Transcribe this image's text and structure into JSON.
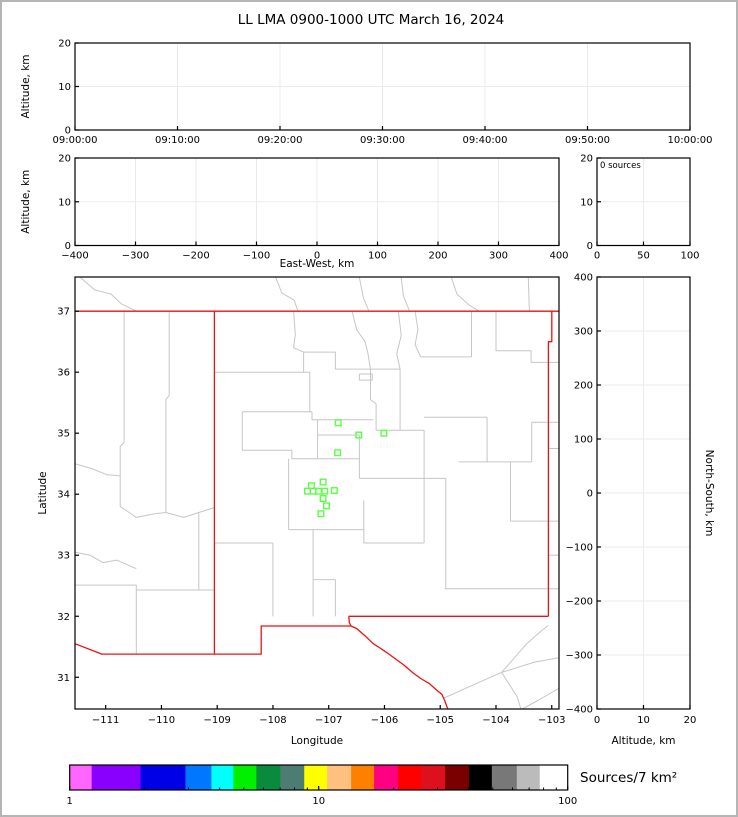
{
  "title": "LL LMA 0900-1000 UTC March 16, 2024",
  "colors": {
    "state_border": "#ee1111",
    "county_line": "#c6c6c6",
    "source_marker": "#5aff46",
    "grid": "#ebebeb",
    "frame": "#000000",
    "text": "#000000"
  },
  "panels": {
    "time_altitude": {
      "ylabel": "Altitude, km",
      "yticks": [
        0,
        10,
        20
      ],
      "xtick_labels": [
        "09:00:00",
        "09:10:00",
        "09:20:00",
        "09:30:00",
        "09:40:00",
        "09:50:00",
        "10:00:00"
      ]
    },
    "ew_altitude": {
      "ylabel": "Altitude, km",
      "xlabel": "East-West, km",
      "yticks": [
        0,
        10,
        20
      ],
      "xticks": [
        -400,
        -300,
        -200,
        -100,
        0,
        100,
        200,
        300,
        400
      ]
    },
    "altitude_histogram": {
      "annotation": "0 sources",
      "xticks": [
        0,
        50,
        100
      ],
      "yticks": [
        0,
        10,
        20
      ]
    },
    "map": {
      "xlabel": "Longitude",
      "ylabel": "Latitude",
      "xticks": [
        -111,
        -110,
        -109,
        -108,
        -107,
        -106,
        -105,
        -104,
        -103
      ],
      "yticks": [
        31,
        32,
        33,
        34,
        35,
        36,
        37
      ]
    },
    "ns_altitude": {
      "xlabel": "Altitude, km",
      "ylabel": "North-South, km",
      "xticks": [
        0,
        10,
        20
      ],
      "yticks": [
        -400,
        -300,
        -200,
        -100,
        0,
        100,
        200,
        300,
        400
      ]
    },
    "colorbar": {
      "label": "Sources/7 km²",
      "tick_labels": [
        "1",
        "10",
        "100"
      ],
      "scale": "log",
      "range": [
        1,
        100
      ],
      "segments": [
        {
          "color": "#ff66ff",
          "w": 22
        },
        {
          "color": "#8a00ff",
          "w": 49
        },
        {
          "color": "#0000e6",
          "w": 45
        },
        {
          "color": "#0077ff",
          "w": 26
        },
        {
          "color": "#00ffff",
          "w": 22
        },
        {
          "color": "#00f000",
          "w": 23
        },
        {
          "color": "#0a8a3c",
          "w": 24
        },
        {
          "color": "#4d7d72",
          "w": 24
        },
        {
          "color": "#ffff00",
          "w": 23
        },
        {
          "color": "#ffc080",
          "w": 24
        },
        {
          "color": "#ff8000",
          "w": 23
        },
        {
          "color": "#ff0080",
          "w": 24
        },
        {
          "color": "#ff0000",
          "w": 23
        },
        {
          "color": "#dd1020",
          "w": 24
        },
        {
          "color": "#7a0000",
          "w": 24
        },
        {
          "color": "#000000",
          "w": 23
        },
        {
          "color": "#787878",
          "w": 25
        },
        {
          "color": "#bbbbbb",
          "w": 23
        },
        {
          "color": "#ffffff",
          "w": 28
        }
      ]
    }
  },
  "chart_data": {
    "type": "scatter",
    "title": "LL LMA 0900-1000 UTC March 16, 2024",
    "map_extent": {
      "lon": [
        -111.55,
        -102.87
      ],
      "lat": [
        30.48,
        37.56
      ]
    },
    "time_range": [
      "09:00:00",
      "10:00:00"
    ],
    "altitude_range_km": [
      0,
      20
    ],
    "ew_range_km": [
      -400,
      400
    ],
    "ns_range_km": [
      -400,
      400
    ],
    "histogram_annotation": "0 sources",
    "source_points_lon_lat": [
      [
        -106.83,
        35.17
      ],
      [
        -106.46,
        34.97
      ],
      [
        -106.01,
        35.0
      ],
      [
        -106.84,
        34.68
      ],
      [
        -107.1,
        34.2
      ],
      [
        -107.31,
        34.14
      ],
      [
        -107.38,
        34.05
      ],
      [
        -107.28,
        34.05
      ],
      [
        -107.18,
        34.05
      ],
      [
        -107.07,
        34.05
      ],
      [
        -106.9,
        34.06
      ],
      [
        -107.1,
        33.93
      ],
      [
        -107.04,
        33.81
      ],
      [
        -107.14,
        33.68
      ]
    ],
    "state_borders": [
      [
        [
          -111.55,
          37
        ],
        [
          -102.87,
          37
        ]
      ],
      [
        [
          -109.05,
          37
        ],
        [
          -109.05,
          31.38
        ]
      ],
      [
        [
          -103.0,
          37
        ],
        [
          -103.0,
          36.5
        ],
        [
          -103.06,
          36.5
        ],
        [
          -103.06,
          32.0
        ]
      ],
      [
        [
          -103.06,
          32.0
        ],
        [
          -106.64,
          32.0
        ]
      ],
      [
        [
          -106.64,
          32.0
        ],
        [
          -106.63,
          31.9
        ],
        [
          -106.6,
          31.84
        ],
        [
          -108.21,
          31.84
        ],
        [
          -108.21,
          31.38
        ],
        [
          -111.07,
          31.38
        ],
        [
          -111.55,
          31.55
        ]
      ],
      [
        [
          -106.6,
          31.84
        ],
        [
          -106.5,
          31.8
        ],
        [
          -106.35,
          31.68
        ],
        [
          -106.2,
          31.55
        ],
        [
          -106.08,
          31.48
        ],
        [
          -105.95,
          31.4
        ],
        [
          -105.8,
          31.3
        ],
        [
          -105.65,
          31.2
        ],
        [
          -105.5,
          31.08
        ],
        [
          -105.35,
          30.98
        ],
        [
          -105.2,
          30.9
        ],
        [
          -105.05,
          30.78
        ],
        [
          -104.97,
          30.72
        ],
        [
          -104.92,
          30.62
        ],
        [
          -104.88,
          30.52
        ],
        [
          -104.86,
          30.48
        ]
      ]
    ],
    "county_lines": [
      [
        [
          -111.45,
          37.55
        ],
        [
          -111.2,
          37.35
        ],
        [
          -110.9,
          37.28
        ],
        [
          -110.72,
          37.12
        ],
        [
          -110.45,
          37.0
        ]
      ],
      [
        [
          -107.95,
          37.55
        ],
        [
          -107.84,
          37.3
        ],
        [
          -107.62,
          37.18
        ],
        [
          -107.55,
          37.0
        ]
      ],
      [
        [
          -106.45,
          37.55
        ],
        [
          -106.38,
          37.22
        ],
        [
          -106.28,
          37.0
        ]
      ],
      [
        [
          -105.7,
          37.55
        ],
        [
          -105.66,
          37.25
        ],
        [
          -105.55,
          37.0
        ]
      ],
      [
        [
          -104.8,
          37.55
        ],
        [
          -104.7,
          37.28
        ],
        [
          -104.48,
          37.1
        ],
        [
          -104.3,
          37.0
        ]
      ],
      [
        [
          -103.42,
          37.55
        ],
        [
          -103.4,
          37.0
        ]
      ],
      [
        [
          -110.67,
          37.0
        ],
        [
          -110.67,
          34.85
        ],
        [
          -110.74,
          34.78
        ],
        [
          -110.74,
          34.3
        ]
      ],
      [
        [
          -109.86,
          37.0
        ],
        [
          -109.86,
          35.62
        ],
        [
          -109.92,
          35.55
        ],
        [
          -109.92,
          33.7
        ]
      ],
      [
        [
          -111.55,
          34.5
        ],
        [
          -111.25,
          34.42
        ],
        [
          -110.98,
          34.32
        ],
        [
          -110.74,
          34.3
        ]
      ],
      [
        [
          -110.74,
          34.3
        ],
        [
          -110.74,
          33.8
        ],
        [
          -110.45,
          33.62
        ],
        [
          -110.12,
          33.68
        ],
        [
          -109.92,
          33.7
        ]
      ],
      [
        [
          -109.92,
          33.7
        ],
        [
          -109.6,
          33.62
        ],
        [
          -109.33,
          33.7
        ],
        [
          -109.05,
          33.78
        ]
      ],
      [
        [
          -109.33,
          33.7
        ],
        [
          -109.33,
          32.43
        ]
      ],
      [
        [
          -111.55,
          33.05
        ],
        [
          -111.28,
          33.0
        ],
        [
          -111.05,
          32.88
        ],
        [
          -110.8,
          32.92
        ],
        [
          -110.45,
          32.78
        ]
      ],
      [
        [
          -111.55,
          32.51
        ],
        [
          -110.45,
          32.51
        ],
        [
          -110.45,
          32.43
        ],
        [
          -109.05,
          32.43
        ]
      ],
      [
        [
          -110.45,
          32.43
        ],
        [
          -110.45,
          31.38
        ]
      ],
      [
        [
          -109.05,
          36.0
        ],
        [
          -107.34,
          36.0
        ]
      ],
      [
        [
          -107.63,
          37.0
        ],
        [
          -107.6,
          36.62
        ],
        [
          -107.63,
          36.4
        ],
        [
          -107.45,
          36.33
        ],
        [
          -107.45,
          36.0
        ]
      ],
      [
        [
          -107.34,
          36.0
        ],
        [
          -107.34,
          35.35
        ]
      ],
      [
        [
          -108.55,
          35.35
        ],
        [
          -107.3,
          35.35
        ]
      ],
      [
        [
          -108.55,
          35.35
        ],
        [
          -108.55,
          34.72
        ]
      ],
      [
        [
          -108.55,
          34.72
        ],
        [
          -107.66,
          34.72
        ]
      ],
      [
        [
          -107.66,
          34.72
        ],
        [
          -107.66,
          34.58
        ],
        [
          -107.2,
          34.58
        ]
      ],
      [
        [
          -107.45,
          36.33
        ],
        [
          -106.88,
          36.33
        ],
        [
          -106.88,
          36.05
        ],
        [
          -105.72,
          36.05
        ]
      ],
      [
        [
          -105.75,
          37.0
        ],
        [
          -105.7,
          36.6
        ],
        [
          -105.78,
          36.3
        ],
        [
          -105.72,
          36.05
        ]
      ],
      [
        [
          -105.45,
          37.0
        ],
        [
          -105.4,
          36.7
        ],
        [
          -105.45,
          36.45
        ],
        [
          -105.35,
          36.25
        ]
      ],
      [
        [
          -105.35,
          36.25
        ],
        [
          -104.44,
          36.25
        ]
      ],
      [
        [
          -104.44,
          37.0
        ],
        [
          -104.44,
          36.25
        ]
      ],
      [
        [
          -104.0,
          37.0
        ],
        [
          -104.0,
          36.35
        ],
        [
          -103.37,
          36.35
        ],
        [
          -103.37,
          36.16
        ],
        [
          -102.87,
          36.16
        ]
      ],
      [
        [
          -106.58,
          37.0
        ],
        [
          -106.5,
          36.7
        ],
        [
          -106.35,
          36.5
        ],
        [
          -106.3,
          36.33
        ],
        [
          -106.25,
          36.05
        ]
      ],
      [
        [
          -106.25,
          36.05
        ],
        [
          -106.25,
          35.55
        ],
        [
          -106.15,
          35.48
        ],
        [
          -106.15,
          35.05
        ]
      ],
      [
        [
          -105.72,
          36.05
        ],
        [
          -105.72,
          35.05
        ]
      ],
      [
        [
          -106.15,
          35.05
        ],
        [
          -105.29,
          35.05
        ]
      ],
      [
        [
          -106.45,
          35.97
        ],
        [
          -106.22,
          35.97
        ],
        [
          -106.22,
          35.87
        ],
        [
          -106.45,
          35.87
        ],
        [
          -106.45,
          35.97
        ]
      ],
      [
        [
          -107.2,
          35.22
        ],
        [
          -107.2,
          34.58
        ]
      ],
      [
        [
          -107.3,
          35.35
        ],
        [
          -107.3,
          35.22
        ],
        [
          -106.2,
          35.22
        ]
      ],
      [
        [
          -107.2,
          34.97
        ],
        [
          -106.45,
          34.97
        ]
      ],
      [
        [
          -106.45,
          34.97
        ],
        [
          -106.45,
          34.26
        ]
      ],
      [
        [
          -107.2,
          34.58
        ],
        [
          -106.45,
          34.58
        ]
      ],
      [
        [
          -105.29,
          35.05
        ],
        [
          -105.29,
          34.26
        ]
      ],
      [
        [
          -106.45,
          34.26
        ],
        [
          -104.9,
          34.26
        ]
      ],
      [
        [
          -105.29,
          35.26
        ],
        [
          -104.16,
          35.26
        ]
      ],
      [
        [
          -104.16,
          35.26
        ],
        [
          -104.16,
          34.53
        ]
      ],
      [
        [
          -104.67,
          34.53
        ],
        [
          -103.36,
          34.53
        ]
      ],
      [
        [
          -102.87,
          35.18
        ],
        [
          -103.36,
          35.18
        ],
        [
          -103.36,
          34.53
        ]
      ],
      [
        [
          -103.74,
          34.53
        ],
        [
          -103.74,
          33.56
        ],
        [
          -102.87,
          33.56
        ]
      ],
      [
        [
          -104.9,
          34.26
        ],
        [
          -104.9,
          32.45
        ]
      ],
      [
        [
          -104.92,
          32.45
        ],
        [
          -102.87,
          32.45
        ]
      ],
      [
        [
          -107.72,
          34.58
        ],
        [
          -107.72,
          33.42
        ]
      ],
      [
        [
          -109.05,
          33.2
        ],
        [
          -108.0,
          33.2
        ]
      ],
      [
        [
          -108.0,
          33.2
        ],
        [
          -108.0,
          32.0
        ]
      ],
      [
        [
          -107.72,
          33.42
        ],
        [
          -106.37,
          33.42
        ]
      ],
      [
        [
          -107.28,
          33.42
        ],
        [
          -107.28,
          32.0
        ]
      ],
      [
        [
          -106.37,
          33.9
        ],
        [
          -106.37,
          33.2
        ]
      ],
      [
        [
          -106.37,
          33.2
        ],
        [
          -105.29,
          33.2
        ]
      ],
      [
        [
          -105.29,
          34.26
        ],
        [
          -105.29,
          33.2
        ]
      ],
      [
        [
          -107.28,
          32.6
        ],
        [
          -106.88,
          32.6
        ]
      ],
      [
        [
          -106.88,
          32.6
        ],
        [
          -106.88,
          32.0
        ]
      ],
      [
        [
          -103.06,
          34.75
        ],
        [
          -102.87,
          34.75
        ]
      ],
      [
        [
          -103.06,
          33.0
        ],
        [
          -102.87,
          33.0
        ]
      ],
      [
        [
          -104.93,
          30.66
        ],
        [
          -104.35,
          30.9
        ],
        [
          -103.9,
          31.08
        ],
        [
          -103.3,
          31.25
        ],
        [
          -102.87,
          31.32
        ]
      ],
      [
        [
          -103.9,
          31.08
        ],
        [
          -103.62,
          30.68
        ],
        [
          -103.55,
          30.47
        ]
      ],
      [
        [
          -103.9,
          31.08
        ],
        [
          -103.45,
          31.55
        ],
        [
          -103.2,
          31.75
        ],
        [
          -103.06,
          31.85
        ]
      ],
      [
        [
          -102.87,
          30.82
        ],
        [
          -103.25,
          30.62
        ],
        [
          -103.55,
          30.47
        ]
      ]
    ]
  }
}
